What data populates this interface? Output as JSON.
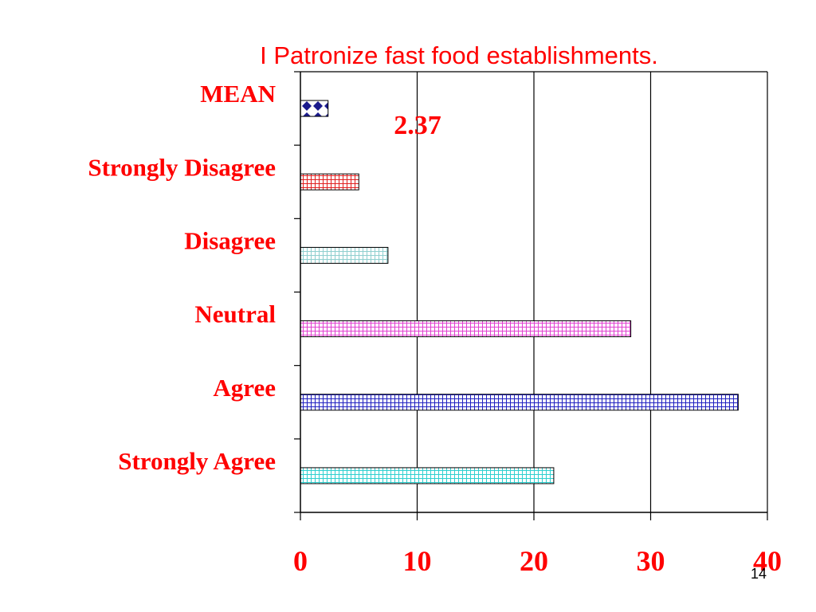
{
  "chart_data": {
    "type": "bar",
    "orientation": "horizontal",
    "title": "I Patronize fast food establishments.",
    "categories": [
      "MEAN",
      "Strongly Disagree",
      "Disagree",
      "Neutral",
      "Agree",
      "Strongly Agree"
    ],
    "values": [
      2.37,
      5.0,
      7.5,
      28.3,
      37.5,
      21.7
    ],
    "bar_colors": [
      "#1a1a8c",
      "#e02020",
      "#8fcfcf",
      "#e040d0",
      "#2020c0",
      "#30d0d0"
    ],
    "xlim": [
      0,
      40
    ],
    "xticks": [
      0,
      10,
      20,
      30,
      40
    ],
    "grid": true,
    "annotation": "2.37",
    "text_color": "#ff0000"
  },
  "page_number": "14"
}
